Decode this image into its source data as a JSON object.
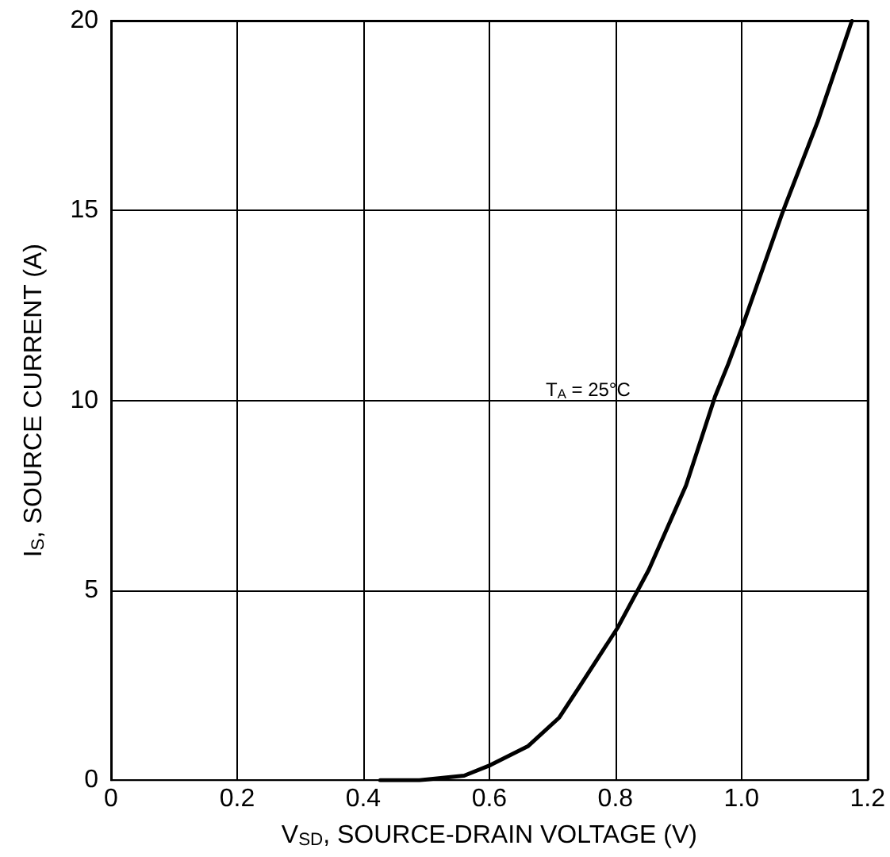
{
  "chart_data": {
    "type": "line",
    "xlabel": "V$_{SD}$, SOURCE-DRAIN VOLTAGE (V)",
    "ylabel": "I$_{S}$, SOURCE CURRENT (A)",
    "x": [
      0.427,
      0.489,
      0.56,
      0.602,
      0.661,
      0.711,
      0.744,
      0.803,
      0.853,
      0.912,
      0.958,
      0.979,
      1.004,
      1.066,
      1.121,
      1.175
    ],
    "series": [
      {
        "color": "#000000",
        "values": [
          0,
          0,
          0.12,
          0.4,
          0.89,
          1.65,
          2.49,
          4.0,
          5.54,
          7.76,
          10.1,
          10.96,
          12.07,
          14.99,
          17.35,
          19.99
        ]
      }
    ],
    "xlim": [
      0,
      1.2
    ],
    "xticks": [
      0,
      0.2,
      0.4,
      0.6,
      0.8,
      {
        "value": 1,
        "label": "1.0"
      },
      1.2
    ],
    "ylim": [
      0,
      20
    ],
    "yticks": [
      0,
      5,
      10,
      15,
      20
    ],
    "annotations": [
      "T$_{A}$ = 25°C"
    ],
    "grid": true,
    "marker": "none",
    "line_style": "solid"
  }
}
